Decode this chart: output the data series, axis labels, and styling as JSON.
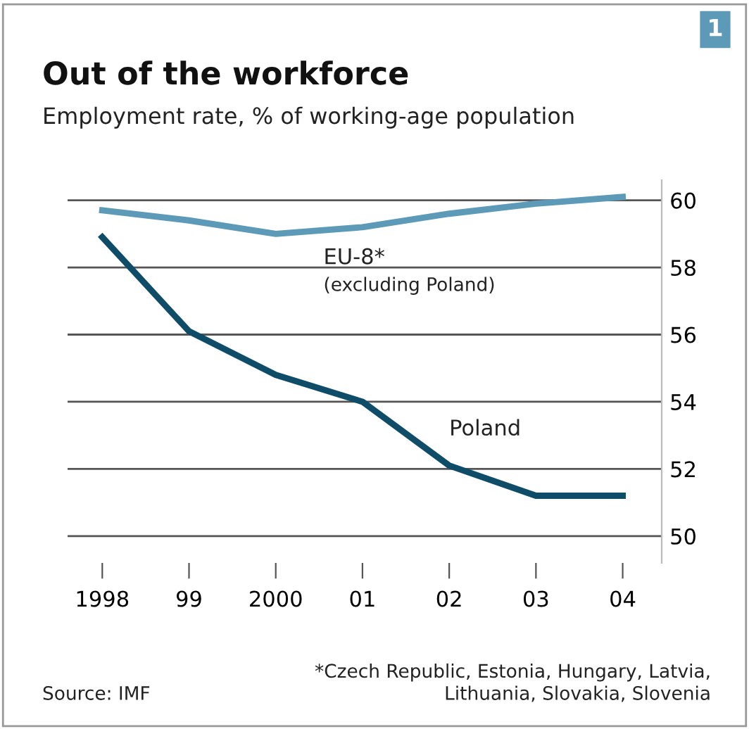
{
  "chart_data": {
    "type": "line",
    "title": "Out of the workforce",
    "subtitle": "Employment rate, % of working-age population",
    "categories": [
      "1998",
      "99",
      "2000",
      "01",
      "02",
      "03",
      "04"
    ],
    "series": [
      {
        "name": "EU-8*",
        "color": "#5d9ab8",
        "values": [
          59.7,
          59.4,
          59.0,
          59.2,
          59.6,
          59.9,
          60.1
        ]
      },
      {
        "name": "Poland",
        "color": "#0e4c68",
        "values": [
          58.9,
          56.1,
          54.8,
          54.0,
          52.1,
          51.2,
          51.2
        ]
      }
    ],
    "ylim": [
      49.2,
      60.6
    ],
    "yticks": [
      50,
      52,
      54,
      56,
      58,
      60
    ],
    "grid": "y",
    "legend": false,
    "marker": "none",
    "line_style": "solid",
    "annotations": [
      "(excluding Poland)",
      "*Czech Republic, Estonia, Hungary, Latvia,\nLithuania, Slovakia, Slovenia",
      "Source: IMF",
      "1"
    ]
  }
}
